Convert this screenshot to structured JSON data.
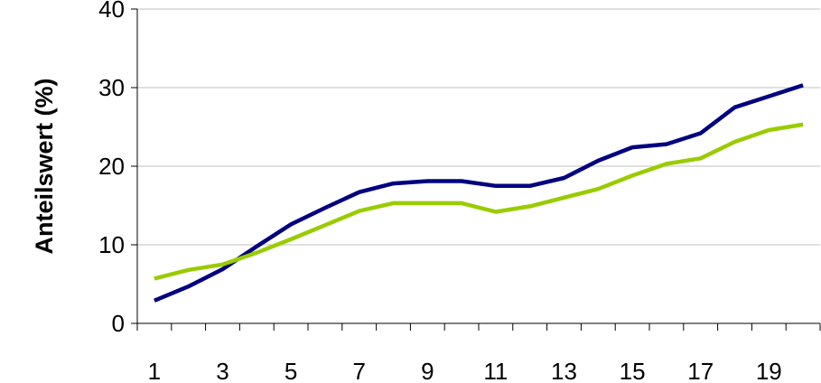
{
  "chart_data": {
    "type": "line",
    "title": "",
    "xlabel": "",
    "ylabel": "Anteilswert (%)",
    "x": [
      1,
      2,
      3,
      4,
      5,
      6,
      7,
      8,
      9,
      10,
      11,
      12,
      13,
      14,
      15,
      16,
      17,
      18,
      19,
      20
    ],
    "x_tick_labels": [
      "1",
      "3",
      "5",
      "7",
      "9",
      "11",
      "13",
      "15",
      "17",
      "19"
    ],
    "ylim": [
      0,
      40
    ],
    "y_ticks": [
      0,
      10,
      20,
      30,
      40
    ],
    "grid": "horizontal",
    "legend": "none",
    "series": [
      {
        "color": "#000080",
        "values": [
          2.9,
          4.7,
          6.9,
          9.8,
          12.6,
          14.7,
          16.7,
          17.8,
          18.1,
          18.1,
          17.5,
          17.5,
          18.5,
          20.7,
          22.4,
          22.8,
          24.2,
          27.5,
          28.9,
          30.3
        ]
      },
      {
        "color": "#99CC00",
        "values": [
          5.7,
          6.8,
          7.5,
          9.0,
          10.7,
          12.5,
          14.3,
          15.3,
          15.3,
          15.3,
          14.2,
          14.9,
          16.0,
          17.1,
          18.8,
          20.3,
          21.0,
          23.1,
          24.6,
          25.3
        ]
      }
    ]
  }
}
